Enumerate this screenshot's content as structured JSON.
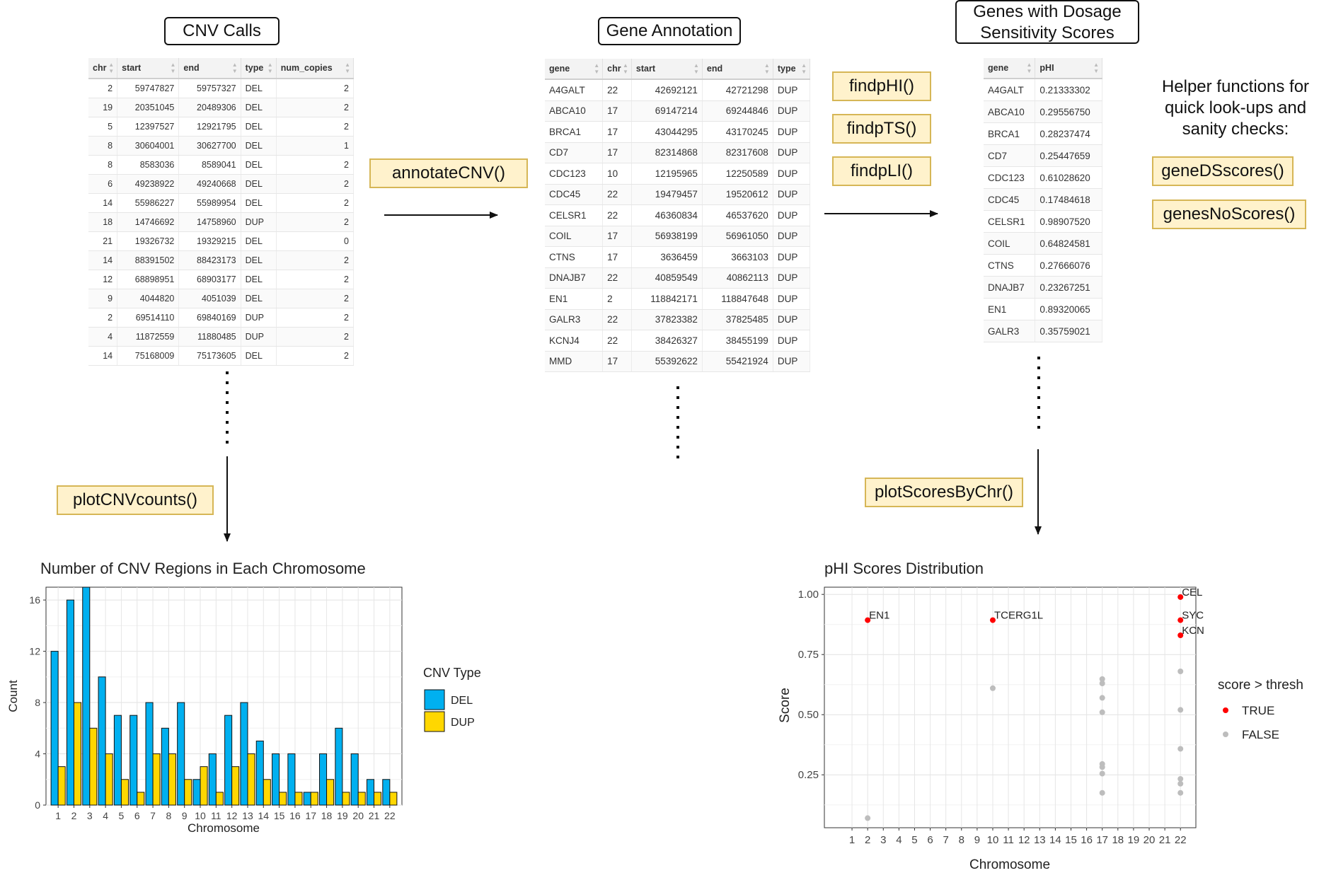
{
  "cnv_calls": {
    "title": "CNV Calls",
    "columns": [
      "chr",
      "start",
      "end",
      "type",
      "num_copies"
    ],
    "rows": [
      [
        "2",
        "59747827",
        "59757327",
        "DEL",
        "2"
      ],
      [
        "19",
        "20351045",
        "20489306",
        "DEL",
        "2"
      ],
      [
        "5",
        "12397527",
        "12921795",
        "DEL",
        "2"
      ],
      [
        "8",
        "30604001",
        "30627700",
        "DEL",
        "1"
      ],
      [
        "8",
        "8583036",
        "8589041",
        "DEL",
        "2"
      ],
      [
        "6",
        "49238922",
        "49240668",
        "DEL",
        "2"
      ],
      [
        "14",
        "55986227",
        "55989954",
        "DEL",
        "2"
      ],
      [
        "18",
        "14746692",
        "14758960",
        "DUP",
        "2"
      ],
      [
        "21",
        "19326732",
        "19329215",
        "DEL",
        "0"
      ],
      [
        "14",
        "88391502",
        "88423173",
        "DEL",
        "2"
      ],
      [
        "12",
        "68898951",
        "68903177",
        "DEL",
        "2"
      ],
      [
        "9",
        "4044820",
        "4051039",
        "DEL",
        "2"
      ],
      [
        "2",
        "69514110",
        "69840169",
        "DUP",
        "2"
      ],
      [
        "4",
        "11872559",
        "11880485",
        "DUP",
        "2"
      ],
      [
        "14",
        "75168009",
        "75173605",
        "DEL",
        "2"
      ]
    ]
  },
  "gene_annotation": {
    "title": "Gene Annotation",
    "columns": [
      "gene",
      "chr",
      "start",
      "end",
      "type"
    ],
    "rows": [
      [
        "A4GALT",
        "22",
        "42692121",
        "42721298",
        "DUP"
      ],
      [
        "ABCA10",
        "17",
        "69147214",
        "69244846",
        "DUP"
      ],
      [
        "BRCA1",
        "17",
        "43044295",
        "43170245",
        "DUP"
      ],
      [
        "CD7",
        "17",
        "82314868",
        "82317608",
        "DUP"
      ],
      [
        "CDC123",
        "10",
        "12195965",
        "12250589",
        "DUP"
      ],
      [
        "CDC45",
        "22",
        "19479457",
        "19520612",
        "DUP"
      ],
      [
        "CELSR1",
        "22",
        "46360834",
        "46537620",
        "DUP"
      ],
      [
        "COIL",
        "17",
        "56938199",
        "56961050",
        "DUP"
      ],
      [
        "CTNS",
        "17",
        "3636459",
        "3663103",
        "DUP"
      ],
      [
        "DNAJB7",
        "22",
        "40859549",
        "40862113",
        "DUP"
      ],
      [
        "EN1",
        "2",
        "118842171",
        "118847648",
        "DUP"
      ],
      [
        "GALR3",
        "22",
        "37823382",
        "37825485",
        "DUP"
      ],
      [
        "KCNJ4",
        "22",
        "38426327",
        "38455199",
        "DUP"
      ],
      [
        "MMD",
        "17",
        "55392622",
        "55421924",
        "DUP"
      ]
    ]
  },
  "dosage_scores": {
    "title_line1": "Genes with Dosage",
    "title_line2": "Sensitivity Scores",
    "columns": [
      "gene",
      "pHI"
    ],
    "rows": [
      [
        "A4GALT",
        "0.21333302"
      ],
      [
        "ABCA10",
        "0.29556750"
      ],
      [
        "BRCA1",
        "0.28237474"
      ],
      [
        "CD7",
        "0.25447659"
      ],
      [
        "CDC123",
        "0.61028620"
      ],
      [
        "CDC45",
        "0.17484618"
      ],
      [
        "CELSR1",
        "0.98907520"
      ],
      [
        "COIL",
        "0.64824581"
      ],
      [
        "CTNS",
        "0.27666076"
      ],
      [
        "DNAJB7",
        "0.23267251"
      ],
      [
        "EN1",
        "0.89320065"
      ],
      [
        "GALR3",
        "0.35759021"
      ]
    ]
  },
  "functions": {
    "annotate": "annotateCNV()",
    "findpHI": "findpHI()",
    "findpTS": "findpTS()",
    "findpLI": "findpLI()",
    "geneDSscores": "geneDSscores()",
    "genesNoScores": "genesNoScores()",
    "plotCNVcounts": "plotCNVcounts()",
    "plotScoresByChr": "plotScoresByChr()"
  },
  "helper_text": {
    "line1": "Helper functions for",
    "line2": "quick look-ups and",
    "line3": "sanity checks:"
  },
  "colors": {
    "del": "#00b0f0",
    "dup": "#ffd700",
    "true_point": "#ff0000",
    "false_point": "#bdbdbd",
    "fn_fill": "#fff2cc",
    "fn_border": "#d6b656"
  },
  "chart_data": [
    {
      "type": "bar",
      "title": "Number of CNV Regions in Each Chromosome",
      "xlabel": "Chromosome",
      "ylabel": "Count",
      "categories": [
        "1",
        "2",
        "3",
        "4",
        "5",
        "6",
        "7",
        "8",
        "9",
        "10",
        "11",
        "12",
        "13",
        "14",
        "15",
        "16",
        "17",
        "18",
        "19",
        "20",
        "21",
        "22"
      ],
      "series": [
        {
          "name": "DEL",
          "values": [
            12,
            16,
            17,
            10,
            7,
            7,
            8,
            6,
            8,
            2,
            4,
            7,
            8,
            5,
            4,
            4,
            1,
            4,
            6,
            4,
            2,
            2
          ]
        },
        {
          "name": "DUP",
          "values": [
            3,
            8,
            6,
            4,
            2,
            1,
            4,
            4,
            2,
            3,
            1,
            3,
            4,
            2,
            1,
            1,
            1,
            2,
            1,
            1,
            1,
            1
          ]
        }
      ],
      "ylim": [
        0,
        17
      ],
      "yticks": [
        "0",
        "4",
        "8",
        "12",
        "16"
      ],
      "legend_title": "CNV Type",
      "legend_position": "right",
      "grid": true
    },
    {
      "type": "scatter",
      "title": "pHI Scores Distribution",
      "xlabel": "Chromosome",
      "ylabel": "Score",
      "categories": [
        "1",
        "2",
        "3",
        "4",
        "5",
        "6",
        "7",
        "8",
        "9",
        "10",
        "11",
        "12",
        "13",
        "14",
        "15",
        "16",
        "17",
        "18",
        "19",
        "20",
        "21",
        "22"
      ],
      "ylim": [
        0.03,
        1.03
      ],
      "yticks": [
        "0.25",
        "0.50",
        "0.75",
        "1.00"
      ],
      "legend_title": "score > thresh",
      "legend_position": "right",
      "grid": true,
      "series": [
        {
          "name": "TRUE",
          "points": [
            {
              "x": "2",
              "y": 0.893,
              "label": "EN1"
            },
            {
              "x": "10",
              "y": 0.893,
              "label": "TCERG1L"
            },
            {
              "x": "22",
              "y": 0.989,
              "label": "CEL"
            },
            {
              "x": "22",
              "y": 0.893,
              "label": "SYC"
            },
            {
              "x": "22",
              "y": 0.83,
              "label": "KCN"
            }
          ]
        },
        {
          "name": "FALSE",
          "points": [
            {
              "x": "2",
              "y": 0.07
            },
            {
              "x": "10",
              "y": 0.61
            },
            {
              "x": "17",
              "y": 0.648
            },
            {
              "x": "17",
              "y": 0.63
            },
            {
              "x": "17",
              "y": 0.57
            },
            {
              "x": "17",
              "y": 0.51
            },
            {
              "x": "17",
              "y": 0.295
            },
            {
              "x": "17",
              "y": 0.282
            },
            {
              "x": "17",
              "y": 0.255
            },
            {
              "x": "17",
              "y": 0.175
            },
            {
              "x": "22",
              "y": 0.68
            },
            {
              "x": "22",
              "y": 0.52
            },
            {
              "x": "22",
              "y": 0.358
            },
            {
              "x": "22",
              "y": 0.233
            },
            {
              "x": "22",
              "y": 0.213
            },
            {
              "x": "22",
              "y": 0.175
            }
          ]
        }
      ]
    }
  ]
}
